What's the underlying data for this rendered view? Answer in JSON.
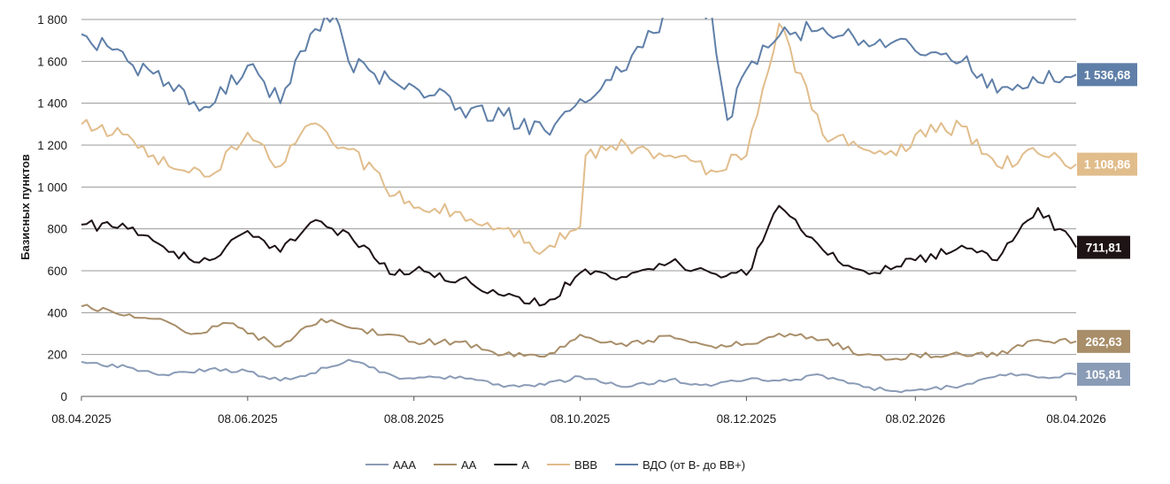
{
  "chart_data": {
    "type": "line",
    "title": "",
    "ylabel": "Базисных пунктов",
    "xlabel": "",
    "ylim": [
      0,
      1800
    ],
    "yticks": [
      0,
      200,
      400,
      600,
      800,
      1000,
      1200,
      1400,
      1600,
      1800
    ],
    "ytick_labels": [
      "0",
      "200",
      "400",
      "600",
      "800",
      "1 000",
      "1 200",
      "1 400",
      "1 600",
      "1 800"
    ],
    "x_range": [
      "2025-04-08",
      "2026-04-08"
    ],
    "xticks": [
      "2025-04-08",
      "2025-06-08",
      "2025-08-08",
      "2025-10-08",
      "2025-12-08",
      "2026-02-08",
      "2026-04-08"
    ],
    "xtick_labels": [
      "08.04.2025",
      "08.06.2025",
      "08.08.2025",
      "08.10.2025",
      "08.12.2025",
      "08.02.2026",
      "08.04.2026"
    ],
    "grid": "horizontal",
    "legend_position": "bottom",
    "series": [
      {
        "name": "AAA",
        "color": "#8a9bb6",
        "end_label": "105,81",
        "points": [
          [
            "2025-04-08",
            165
          ],
          [
            "2025-04-25",
            140
          ],
          [
            "2025-05-10",
            100
          ],
          [
            "2025-05-25",
            130
          ],
          [
            "2025-06-08",
            120
          ],
          [
            "2025-06-20",
            75
          ],
          [
            "2025-07-01",
            110
          ],
          [
            "2025-07-15",
            175
          ],
          [
            "2025-08-01",
            95
          ],
          [
            "2025-08-08",
            85
          ],
          [
            "2025-08-25",
            95
          ],
          [
            "2025-09-10",
            45
          ],
          [
            "2025-09-25",
            55
          ],
          [
            "2025-10-08",
            95
          ],
          [
            "2025-10-25",
            45
          ],
          [
            "2025-11-10",
            80
          ],
          [
            "2025-11-25",
            50
          ],
          [
            "2025-12-08",
            80
          ],
          [
            "2025-12-20",
            75
          ],
          [
            "2026-01-05",
            100
          ],
          [
            "2026-01-20",
            45
          ],
          [
            "2026-02-01",
            25
          ],
          [
            "2026-02-08",
            30
          ],
          [
            "2026-02-25",
            50
          ],
          [
            "2026-03-15",
            110
          ],
          [
            "2026-03-25",
            90
          ],
          [
            "2026-04-08",
            105.81
          ]
        ]
      },
      {
        "name": "AA",
        "color": "#a88e69",
        "end_label": "262,63",
        "points": [
          [
            "2025-04-08",
            430
          ],
          [
            "2025-04-20",
            400
          ],
          [
            "2025-05-05",
            370
          ],
          [
            "2025-05-20",
            300
          ],
          [
            "2025-06-01",
            350
          ],
          [
            "2025-06-08",
            300
          ],
          [
            "2025-06-20",
            240
          ],
          [
            "2025-07-05",
            370
          ],
          [
            "2025-07-20",
            320
          ],
          [
            "2025-08-08",
            260
          ],
          [
            "2025-08-25",
            260
          ],
          [
            "2025-09-10",
            200
          ],
          [
            "2025-09-25",
            190
          ],
          [
            "2025-10-08",
            295
          ],
          [
            "2025-10-25",
            240
          ],
          [
            "2025-11-10",
            290
          ],
          [
            "2025-11-25",
            240
          ],
          [
            "2025-12-08",
            250
          ],
          [
            "2025-12-20",
            300
          ],
          [
            "2026-01-05",
            270
          ],
          [
            "2026-01-20",
            200
          ],
          [
            "2026-02-01",
            180
          ],
          [
            "2026-02-08",
            200
          ],
          [
            "2026-02-25",
            200
          ],
          [
            "2026-03-10",
            195
          ],
          [
            "2026-03-25",
            270
          ],
          [
            "2026-04-08",
            262.63
          ]
        ]
      },
      {
        "name": "A",
        "color": "#1e1315",
        "end_label": "711,81",
        "points": [
          [
            "2025-04-08",
            820
          ],
          [
            "2025-04-25",
            800
          ],
          [
            "2025-05-10",
            690
          ],
          [
            "2025-05-25",
            650
          ],
          [
            "2025-06-08",
            790
          ],
          [
            "2025-06-20",
            690
          ],
          [
            "2025-07-01",
            830
          ],
          [
            "2025-07-15",
            780
          ],
          [
            "2025-08-01",
            580
          ],
          [
            "2025-08-08",
            600
          ],
          [
            "2025-08-25",
            560
          ],
          [
            "2025-09-10",
            480
          ],
          [
            "2025-09-25",
            440
          ],
          [
            "2025-10-08",
            590
          ],
          [
            "2025-10-25",
            570
          ],
          [
            "2025-11-10",
            640
          ],
          [
            "2025-11-25",
            590
          ],
          [
            "2025-12-08",
            580
          ],
          [
            "2025-12-20",
            910
          ],
          [
            "2026-01-05",
            700
          ],
          [
            "2026-01-20",
            600
          ],
          [
            "2026-02-01",
            620
          ],
          [
            "2026-02-08",
            650
          ],
          [
            "2026-02-25",
            720
          ],
          [
            "2026-03-10",
            650
          ],
          [
            "2026-03-25",
            900
          ],
          [
            "2026-04-08",
            711.81
          ]
        ]
      },
      {
        "name": "BBB",
        "color": "#e1bd8c",
        "end_label": "1 108,86",
        "points": [
          [
            "2025-04-08",
            1300
          ],
          [
            "2025-04-25",
            1250
          ],
          [
            "2025-05-10",
            1100
          ],
          [
            "2025-05-25",
            1050
          ],
          [
            "2025-06-08",
            1260
          ],
          [
            "2025-06-20",
            1100
          ],
          [
            "2025-07-01",
            1300
          ],
          [
            "2025-07-15",
            1180
          ],
          [
            "2025-08-01",
            960
          ],
          [
            "2025-08-08",
            900
          ],
          [
            "2025-08-25",
            880
          ],
          [
            "2025-09-10",
            800
          ],
          [
            "2025-09-25",
            700
          ],
          [
            "2025-10-08",
            810
          ],
          [
            "2025-10-10",
            1150
          ],
          [
            "2025-10-25",
            1200
          ],
          [
            "2025-11-10",
            1150
          ],
          [
            "2025-11-25",
            1080
          ],
          [
            "2025-12-08",
            1150
          ],
          [
            "2025-12-20",
            1780
          ],
          [
            "2026-01-05",
            1250
          ],
          [
            "2026-01-20",
            1180
          ],
          [
            "2026-02-01",
            1150
          ],
          [
            "2026-02-08",
            1250
          ],
          [
            "2026-02-25",
            1290
          ],
          [
            "2026-03-10",
            1100
          ],
          [
            "2026-03-25",
            1160
          ],
          [
            "2026-04-08",
            1108.86
          ]
        ]
      },
      {
        "name": "ВДО (от B- до BB+)",
        "color": "#5f7fa8",
        "end_label": "1 536,68",
        "points": [
          [
            "2025-04-08",
            1730
          ],
          [
            "2025-04-25",
            1600
          ],
          [
            "2025-05-10",
            1500
          ],
          [
            "2025-05-25",
            1380
          ],
          [
            "2025-06-08",
            1580
          ],
          [
            "2025-06-20",
            1400
          ],
          [
            "2025-07-01",
            1730
          ],
          [
            "2025-07-10",
            1820
          ],
          [
            "2025-07-15",
            1600
          ],
          [
            "2025-08-01",
            1500
          ],
          [
            "2025-08-08",
            1480
          ],
          [
            "2025-08-25",
            1380
          ],
          [
            "2025-09-10",
            1340
          ],
          [
            "2025-09-25",
            1270
          ],
          [
            "2025-10-08",
            1420
          ],
          [
            "2025-10-25",
            1560
          ],
          [
            "2025-11-10",
            1850
          ],
          [
            "2025-11-25",
            1850
          ],
          [
            "2025-12-01",
            1320
          ],
          [
            "2025-12-08",
            1560
          ],
          [
            "2025-12-20",
            1720
          ],
          [
            "2026-01-05",
            1760
          ],
          [
            "2026-01-20",
            1700
          ],
          [
            "2026-02-01",
            1700
          ],
          [
            "2026-02-08",
            1650
          ],
          [
            "2026-02-25",
            1600
          ],
          [
            "2026-03-10",
            1450
          ],
          [
            "2026-03-25",
            1500
          ],
          [
            "2026-04-08",
            1536.68
          ]
        ]
      }
    ]
  }
}
